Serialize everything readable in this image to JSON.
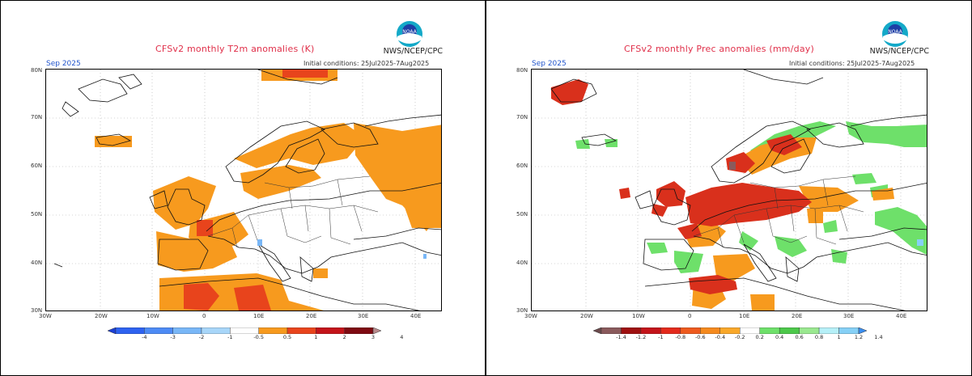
{
  "left": {
    "title": "CFSv2 monthly T2m anomalies (K)",
    "month": "Sep 2025",
    "init": "Initial conditions: 25Jul2025-7Aug2025",
    "brand": "NWS/NCEP/CPC",
    "logo_text": "NOAA",
    "lat_labels": [
      "80N",
      "70N",
      "60N",
      "50N",
      "40N",
      "30N"
    ],
    "lon_labels": [
      "30W",
      "20W",
      "10W",
      "0",
      "10E",
      "20E",
      "30E",
      "40E"
    ],
    "colorbar": {
      "labels": [
        "-4",
        "-3",
        "-2",
        "-1",
        "-0.5",
        "0.5",
        "1",
        "2",
        "3",
        "4"
      ],
      "colors": [
        "#1c3fd6",
        "#2e62f0",
        "#4d8bf5",
        "#79b7f7",
        "#a8d6f9",
        "#ffffff",
        "#f79a1e",
        "#e8441c",
        "#c3141a",
        "#7e0a12",
        "#b88a8c"
      ]
    }
  },
  "right": {
    "title": "CFSv2 monthly Prec anomalies (mm/day)",
    "month": "Sep 2025",
    "init": "Initial conditions: 25Jul2025-7Aug2025",
    "brand": "NWS/NCEP/CPC",
    "logo_text": "NOAA",
    "lat_labels": [
      "80N",
      "70N",
      "60N",
      "50N",
      "40N",
      "30N"
    ],
    "lon_labels": [
      "30W",
      "20W",
      "10W",
      "0",
      "10E",
      "20E",
      "30E",
      "40E"
    ],
    "colorbar": {
      "labels": [
        "-1.4",
        "-1.2",
        "-1",
        "-0.8",
        "-0.6",
        "-0.4",
        "-0.2",
        "0.2",
        "0.4",
        "0.6",
        "0.8",
        "1",
        "1.2",
        "1.4"
      ],
      "colors": [
        "#6b4a4c",
        "#8a5a5c",
        "#9e1010",
        "#c3141a",
        "#e32a1c",
        "#ee5a1e",
        "#f58a1e",
        "#f9a82a",
        "#ffffff",
        "#6ee06a",
        "#4cc84a",
        "#9ae890",
        "#b6f0f8",
        "#86d0f6",
        "#3a8ef0"
      ]
    }
  },
  "colors": {
    "title": "#e0304a",
    "month": "#2255cc",
    "warm": "#f79a1e",
    "hot": "#e8441c",
    "dryred": "#d9301c",
    "wetgreen": "#6ee06a"
  }
}
